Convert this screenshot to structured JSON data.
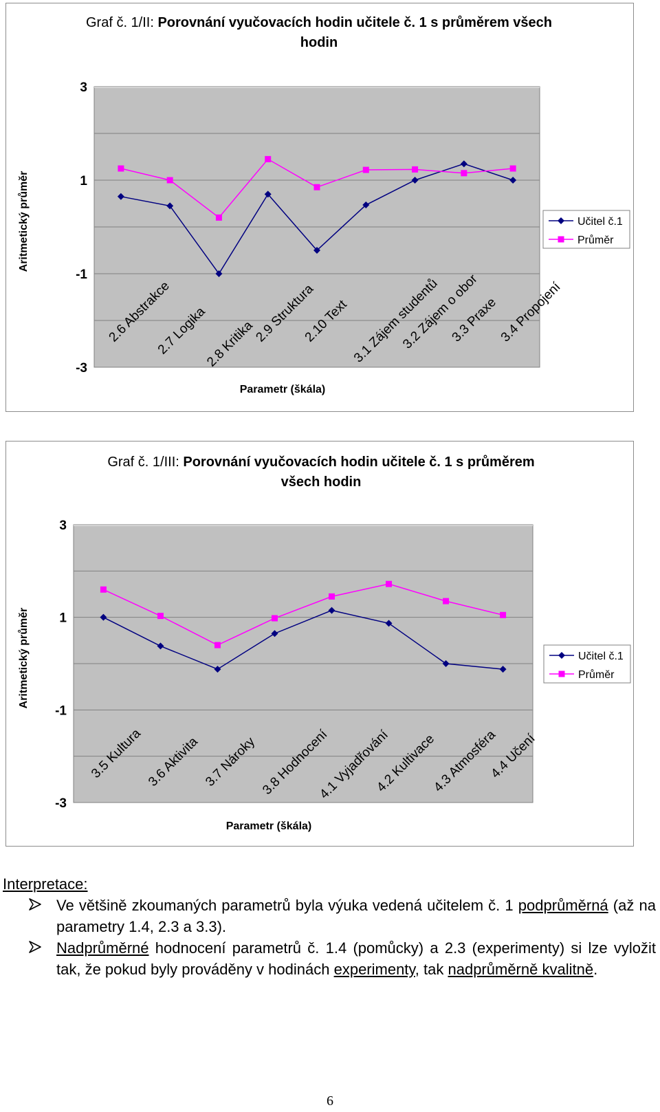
{
  "chart_data": [
    {
      "type": "line",
      "title_prefix": "Graf č. 1/II:",
      "title_main_line1": "Porovnání vyučovacích hodin učitele č. 1 s průměrem všech",
      "title_main_line2": "hodin",
      "xlabel": "Parametr (škála)",
      "ylabel": "Aritmetický průměr",
      "ylim": [
        -3,
        3
      ],
      "y_ticks": [
        "3",
        "1",
        "-1",
        "-3"
      ],
      "legend_position": "right",
      "categories": [
        "2.6 Abstrakce",
        "2.7 Logika",
        "2.8 Kritika",
        "2.9 Struktura",
        "2.10 Text",
        "3.1 Zájem studentů",
        "3.2 Zájem o obor",
        "3.3 Praxe",
        "3.4 Propojení"
      ],
      "series": [
        {
          "name": "Učitel č.1",
          "color": "#000080",
          "marker": "diamond",
          "values": [
            0.65,
            0.45,
            -1.0,
            0.7,
            -0.5,
            0.47,
            1.0,
            1.35,
            1.0
          ]
        },
        {
          "name": "Průměr",
          "color": "#ff00ff",
          "marker": "square",
          "values": [
            1.25,
            1.0,
            0.2,
            1.45,
            0.85,
            1.22,
            1.23,
            1.15,
            1.25
          ]
        }
      ]
    },
    {
      "type": "line",
      "title_prefix": "Graf č. 1/III:",
      "title_main_line1": "Porovnání vyučovacích hodin učitele č. 1 s průměrem",
      "title_main_line2": "všech hodin",
      "xlabel": "Parametr (škála)",
      "ylabel": "Aritmetický průměr",
      "ylim": [
        -3,
        3
      ],
      "y_ticks": [
        "3",
        "1",
        "-1",
        "-3"
      ],
      "legend_position": "right",
      "categories": [
        "3.5 Kultura",
        "3.6 Aktivita",
        "3.7 Nároky",
        "3.8 Hodnocení",
        "4.1 Vyjadřování",
        "4.2 Kultivace",
        "4.3 Atmosféra",
        "4.4 Učení"
      ],
      "series": [
        {
          "name": "Učitel č.1",
          "color": "#000080",
          "marker": "diamond",
          "values": [
            1.0,
            0.38,
            -0.12,
            0.65,
            1.15,
            0.87,
            0.0,
            -0.12
          ]
        },
        {
          "name": "Průměr",
          "color": "#ff00ff",
          "marker": "square",
          "values": [
            1.6,
            1.03,
            0.4,
            0.98,
            1.45,
            1.72,
            1.35,
            1.05
          ]
        }
      ]
    }
  ],
  "interpretation": {
    "heading": "Interpretace:",
    "bullet1": {
      "part1": "Ve většině zkoumaných parametrů byla výuka vedená učitelem č. 1",
      "underlined": "podprůměrná",
      "part2": " (až na parametry 1.4, 2.3 a 3.3)."
    },
    "bullet2": {
      "underlined1": "Nadprůměrné",
      "part1": " hodnocení parametrů č. 1.4 (pomůcky) a 2.3 (experimenty) si lze vyložit tak, že pokud byly prováděny v hodinách ",
      "underlined2": "experimenty",
      "part2": ", tak ",
      "underlined3": "nadprůměrně kvalitně",
      "part3": "."
    },
    "bullet_icon": "arrowhead-bullet-icon"
  },
  "page_number": "6"
}
